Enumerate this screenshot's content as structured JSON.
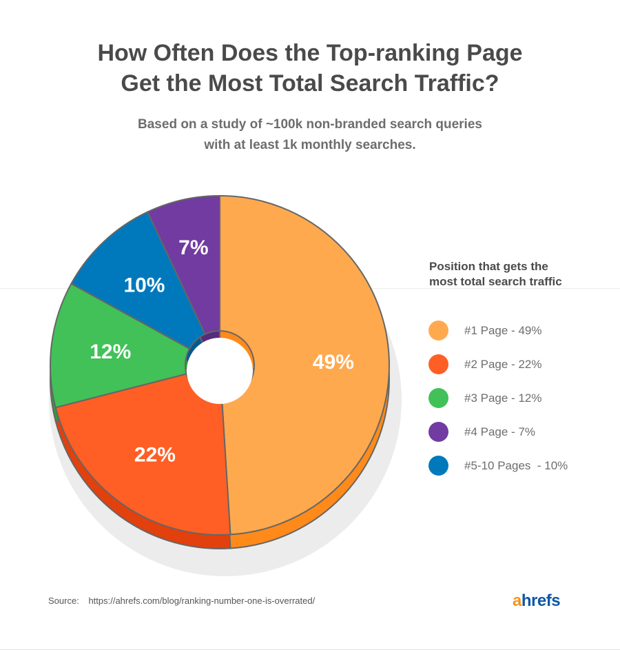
{
  "chart_data": {
    "type": "pie",
    "title": "How Often Does the Top-ranking Page Get the Most Total Search Traffic?",
    "title_lines": [
      "How Often Does the Top-ranking Page",
      "Get the Most Total Search Traffic?"
    ],
    "subtitle_lines": [
      "Based on a study of ~100k non-branded search queries",
      "with at least 1k monthly searches."
    ],
    "legend_title_lines": [
      "Position that gets the",
      "most total search traffic"
    ],
    "legend_position": "right",
    "slices": [
      {
        "label": "#1 Page - 49%",
        "value": 49,
        "data_label": "49%",
        "color": "#ffa94f",
        "dark": "#ff8a1a"
      },
      {
        "label": "#2 Page - 22%",
        "value": 22,
        "data_label": "22%",
        "color": "#ff5f25",
        "dark": "#e2400c"
      },
      {
        "label": "#3 Page - 12%",
        "value": 12,
        "data_label": "12%",
        "color": "#41c158",
        "dark": "#2f9a3e"
      },
      {
        "label": "#5-10 Pages  - 10%",
        "value": 10,
        "data_label": "10%",
        "color": "#0079bc",
        "dark": "#005a8e"
      },
      {
        "label": "#4 Page - 7%",
        "value": 7,
        "data_label": "7%",
        "color": "#713ba1",
        "dark": "#552b7c"
      }
    ],
    "legend_order": [
      0,
      1,
      2,
      4,
      3
    ]
  },
  "source": {
    "label": "Source:",
    "url": "https://ahrefs.com/blog/ranking-number-one-is-overrated/"
  },
  "logo": {
    "first": "a",
    "rest": "hrefs"
  }
}
